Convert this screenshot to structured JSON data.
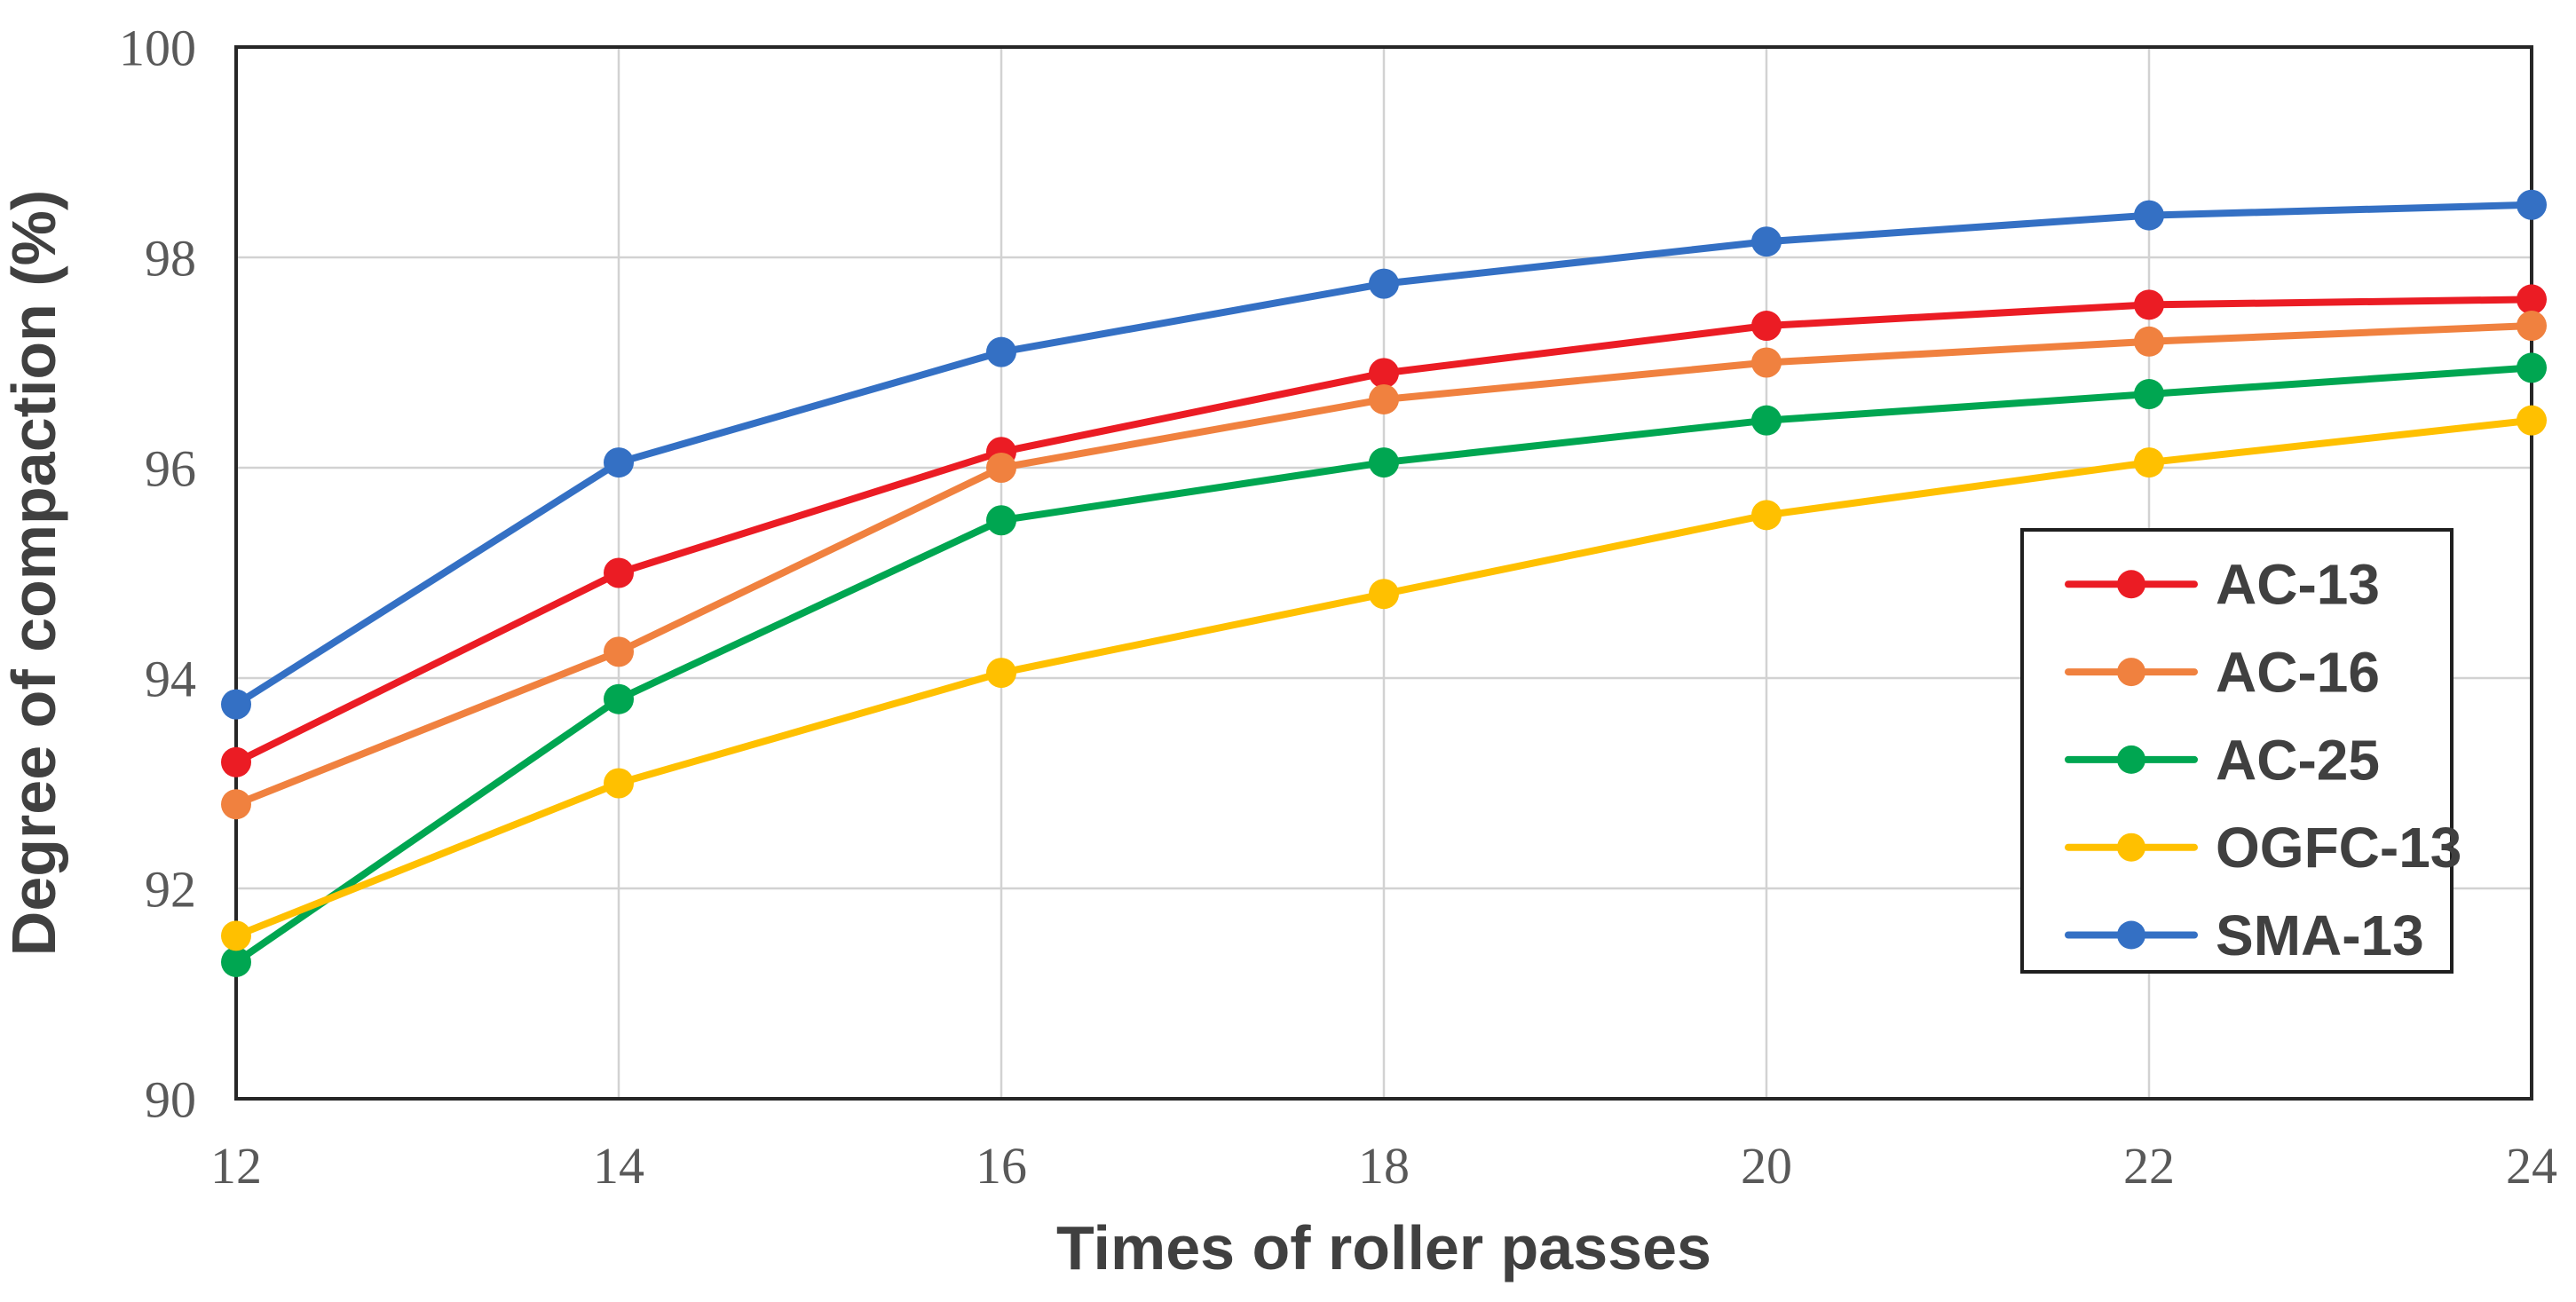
{
  "chart_data": {
    "type": "line",
    "title": "",
    "xlabel": "Times of roller passes",
    "ylabel": "Degree of compaction (%)",
    "x": [
      12,
      14,
      16,
      18,
      20,
      22,
      24
    ],
    "x_ticks": [
      12,
      14,
      16,
      18,
      20,
      22,
      24
    ],
    "y_ticks": [
      90,
      92,
      94,
      96,
      98,
      100
    ],
    "xlim": [
      12,
      24
    ],
    "ylim": [
      90,
      100
    ],
    "grid": true,
    "legend_position": "inside-right",
    "marker": "circle",
    "series": [
      {
        "name": "AC-13",
        "color": "#EB1C24",
        "values": [
          93.2,
          95.0,
          96.15,
          96.9,
          97.35,
          97.55,
          97.6
        ]
      },
      {
        "name": "AC-16",
        "color": "#F0813F",
        "values": [
          92.8,
          94.25,
          96.0,
          96.65,
          97.0,
          97.2,
          97.35
        ]
      },
      {
        "name": "AC-25",
        "color": "#00A651",
        "values": [
          91.3,
          93.8,
          95.5,
          96.05,
          96.45,
          96.7,
          96.95
        ]
      },
      {
        "name": "OGFC-13",
        "color": "#FFC000",
        "values": [
          91.55,
          93.0,
          94.05,
          94.8,
          95.55,
          96.05,
          96.45
        ]
      },
      {
        "name": "SMA-13",
        "color": "#3470C4",
        "values": [
          93.75,
          96.05,
          97.1,
          97.75,
          98.15,
          98.4,
          98.5
        ]
      }
    ]
  },
  "theme": {
    "background": "#FFFFFF",
    "grid_color": "#D2D2D2",
    "frame_color": "#262626",
    "tick_label_color": "#595959",
    "axis_title_color": "#404040",
    "legend_text_color": "#404040",
    "legend_border_color": "#1F1F1F",
    "legend_background": "#FFFFFF"
  }
}
